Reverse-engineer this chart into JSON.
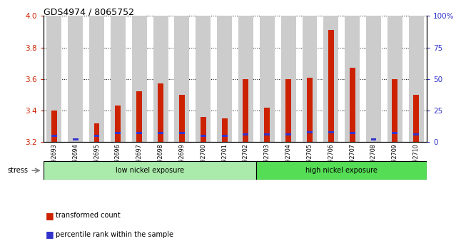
{
  "title": "GDS4974 / 8065752",
  "samples": [
    "GSM992693",
    "GSM992694",
    "GSM992695",
    "GSM992696",
    "GSM992697",
    "GSM992698",
    "GSM992699",
    "GSM992700",
    "GSM992701",
    "GSM992702",
    "GSM992703",
    "GSM992704",
    "GSM992705",
    "GSM992706",
    "GSM992707",
    "GSM992708",
    "GSM992709",
    "GSM992710"
  ],
  "red_values": [
    3.4,
    3.2,
    3.32,
    3.43,
    3.52,
    3.57,
    3.5,
    3.36,
    3.35,
    3.6,
    3.42,
    3.6,
    3.61,
    3.91,
    3.67,
    3.2,
    3.6,
    3.5
  ],
  "blue_values": [
    5,
    2,
    5,
    7,
    7,
    7,
    7,
    5,
    5,
    6,
    6,
    6,
    8,
    8,
    7,
    2,
    7,
    6
  ],
  "ylim_left": [
    3.2,
    4.0
  ],
  "ylim_right": [
    0,
    100
  ],
  "yticks_left": [
    3.2,
    3.4,
    3.6,
    3.8,
    4.0
  ],
  "yticks_right": [
    0,
    25,
    50,
    75,
    100
  ],
  "ytick_right_labels": [
    "0",
    "25",
    "50",
    "75",
    "100%"
  ],
  "red_color": "#cc2200",
  "blue_color": "#3333cc",
  "bar_bg_color": "#cccccc",
  "low_nickel_color": "#aaeaaa",
  "high_nickel_color": "#55dd55",
  "low_nickel_label": "low nickel exposure",
  "high_nickel_label": "high nickel exposure",
  "stress_label": "stress",
  "low_nickel_samples": 10,
  "high_nickel_samples": 8,
  "legend_red_label": "transformed count",
  "legend_blue_label": "percentile rank within the sample",
  "base_value": 3.2
}
